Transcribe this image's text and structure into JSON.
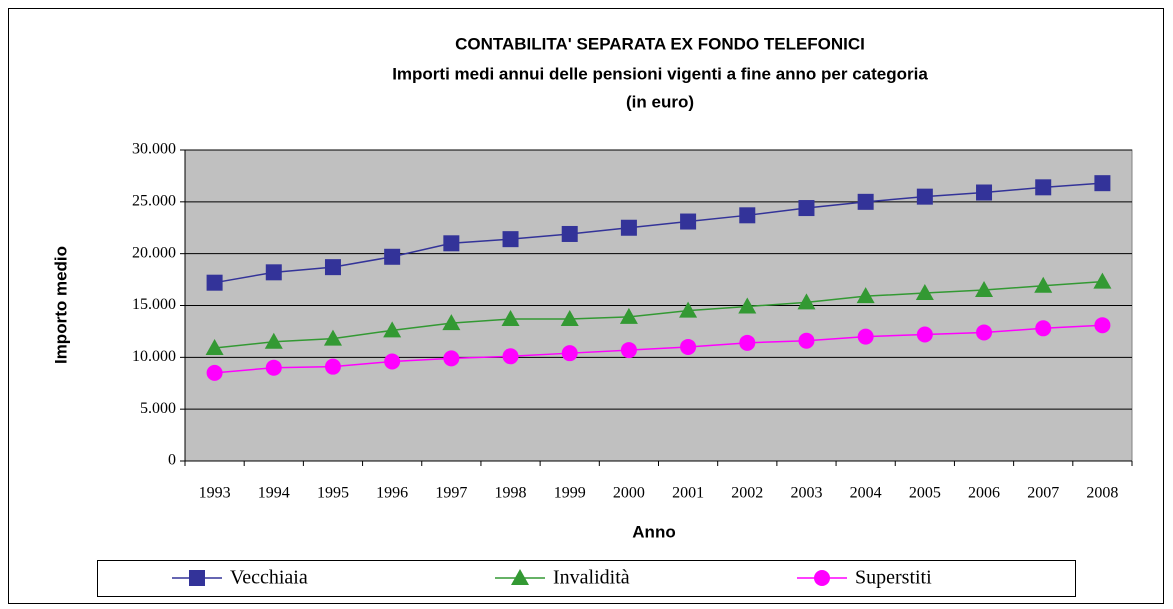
{
  "chart_data": {
    "type": "line",
    "title": [
      "CONTABILITA' SEPARATA EX FONDO TELEFONICI",
      "Importi medi annui delle pensioni vigenti a fine anno per categoria",
      "(in euro)"
    ],
    "x_label": "Anno",
    "y_label": "Importo medio",
    "categories": [
      "1993",
      "1994",
      "1995",
      "1996",
      "1997",
      "1998",
      "1999",
      "2000",
      "2001",
      "2002",
      "2003",
      "2004",
      "2005",
      "2006",
      "2007",
      "2008"
    ],
    "series": [
      {
        "name": "Vecchiaia",
        "color": "#333399",
        "marker": "square",
        "values": [
          17200,
          18200,
          18700,
          19700,
          21000,
          21400,
          21900,
          22500,
          23100,
          23700,
          24400,
          25000,
          25500,
          25900,
          26400,
          26800
        ]
      },
      {
        "name": "Invalidità",
        "color": "#339933",
        "marker": "triangle",
        "values": [
          10900,
          11500,
          11800,
          12600,
          13300,
          13700,
          13700,
          13900,
          14500,
          14900,
          15300,
          15900,
          16200,
          16500,
          16900,
          17300
        ]
      },
      {
        "name": "Superstiti",
        "color": "#ff00ff",
        "marker": "circle",
        "values": [
          8500,
          9000,
          9100,
          9600,
          9900,
          10100,
          10400,
          10700,
          11000,
          11400,
          11600,
          12000,
          12200,
          12400,
          12800,
          13100
        ]
      }
    ],
    "ylim": [
      0,
      30000
    ],
    "yticks": [
      0,
      {
        "value": 5000,
        "label": "5.000"
      },
      {
        "value": 10000,
        "label": "10.000"
      },
      {
        "value": 15000,
        "label": "15.000"
      },
      {
        "value": 20000,
        "label": "20.000"
      },
      {
        "value": 25000,
        "label": "25.000"
      },
      {
        "value": 30000,
        "label": "30.000"
      }
    ],
    "grid": true,
    "plot_background": "#c0c0c0",
    "legend": "bottom"
  }
}
